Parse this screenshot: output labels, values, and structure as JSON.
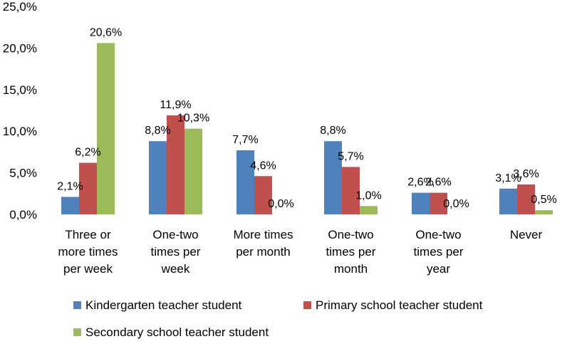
{
  "chart_data": {
    "type": "bar",
    "categories": [
      [
        "Three or",
        "more times",
        "per week"
      ],
      [
        "One-two",
        "times per",
        "week"
      ],
      [
        "More times",
        "per month"
      ],
      [
        "One-two",
        "times per",
        "month"
      ],
      [
        "One-two",
        "times per",
        "year"
      ],
      [
        "Never"
      ]
    ],
    "series": [
      {
        "name": "Kindergarten teacher student",
        "color": "#4F81BD",
        "values": [
          2.1,
          8.8,
          7.7,
          8.8,
          2.6,
          3.1
        ],
        "labels": [
          "2,1%",
          "8,8%",
          "7,7%",
          "8,8%",
          "2,6%",
          "3,1%"
        ]
      },
      {
        "name": "Primary school teacher student",
        "color": "#C0504D",
        "values": [
          6.2,
          11.9,
          4.6,
          5.7,
          2.6,
          3.6
        ],
        "labels": [
          "6,2%",
          "11,9%",
          "4,6%",
          "5,7%",
          "2,6%",
          "3,6%"
        ]
      },
      {
        "name": "Secondary school teacher student",
        "color": "#9BBB59",
        "values": [
          20.6,
          10.3,
          0.0,
          1.0,
          0.0,
          0.5
        ],
        "labels": [
          "20,6%",
          "10,3%",
          "0,0%",
          "1,0%",
          "0,0%",
          "0,5%"
        ]
      }
    ],
    "yticks": [
      "0,0%",
      "5,0%",
      "10,0%",
      "15,0%",
      "20,0%",
      "25,0%"
    ],
    "ylim": [
      0,
      25
    ],
    "grid": false,
    "legend_position": "bottom",
    "title": "",
    "xlabel": "",
    "ylabel": ""
  }
}
